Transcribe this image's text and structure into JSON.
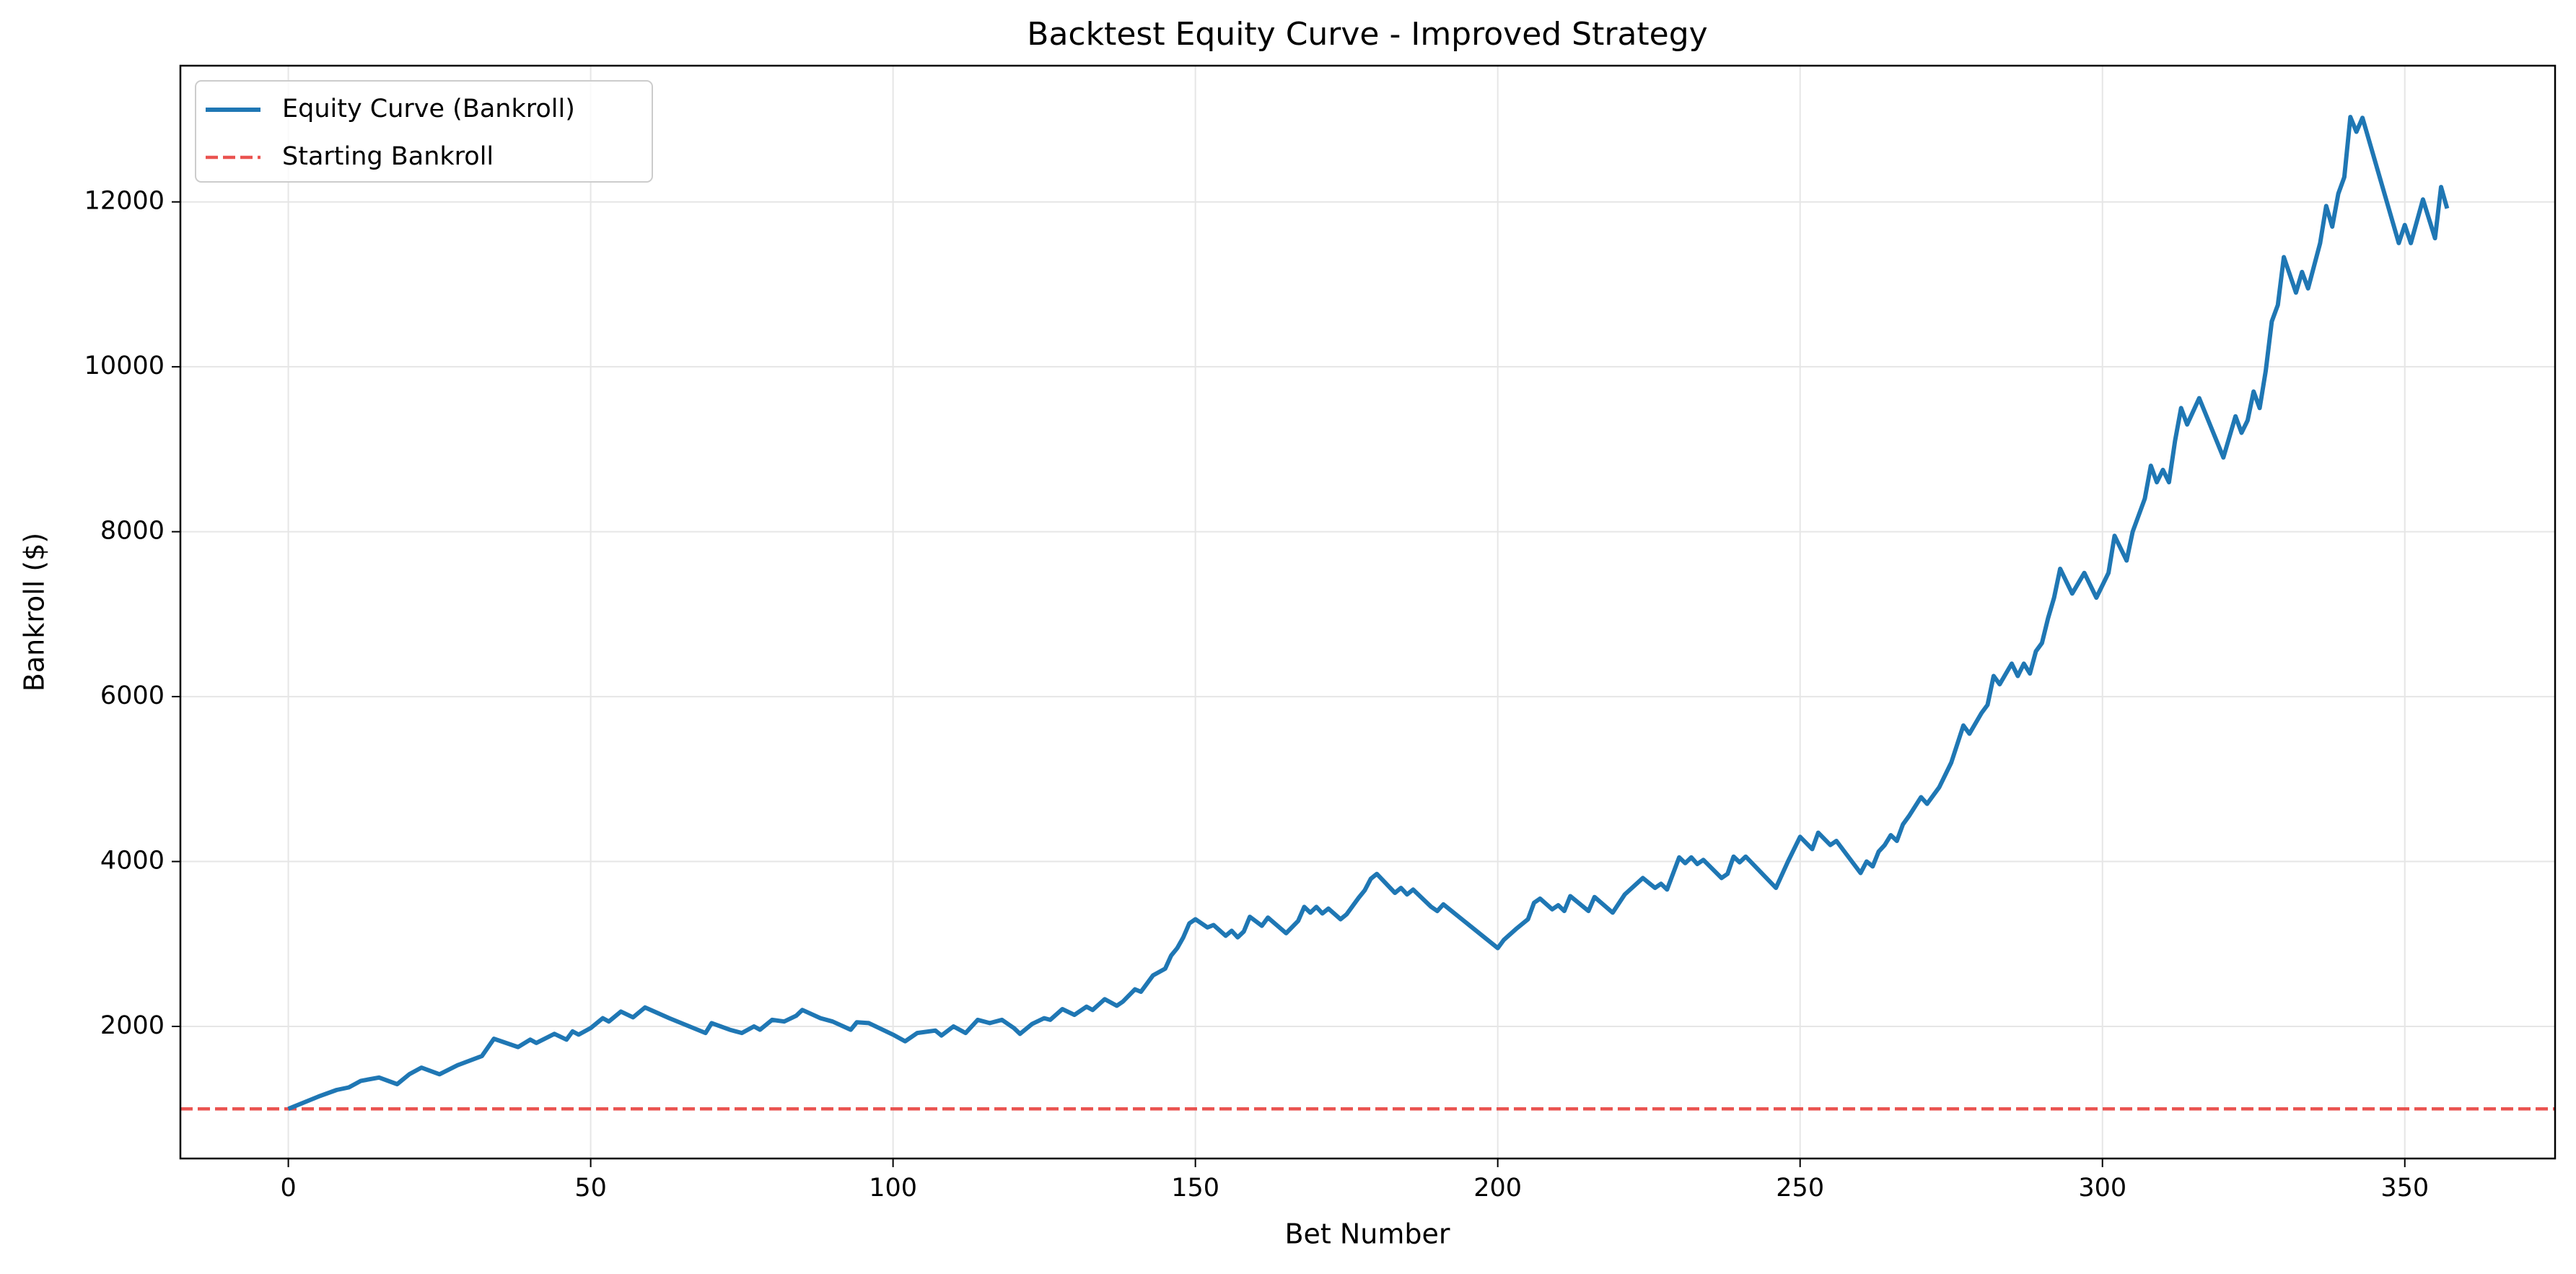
{
  "chart_data": {
    "type": "line",
    "title": "Backtest Equity Curve - Improved Strategy",
    "x_label": "Bet Number",
    "y_label": "Bankroll ($)",
    "xlim": [
      -17.85,
      374.85
    ],
    "ylim": [
      398,
      13652
    ],
    "xticks": [
      0,
      50,
      100,
      150,
      200,
      250,
      300,
      350
    ],
    "yticks": [
      2000,
      4000,
      6000,
      8000,
      10000,
      12000
    ],
    "grid": true,
    "legend": "upper left",
    "series": [
      {
        "name": "Equity Curve (Bankroll)",
        "color": "#1f77b4",
        "x": [
          0,
          5,
          8,
          10,
          12,
          15,
          18,
          20,
          22,
          25,
          28,
          32,
          34,
          38,
          40,
          41,
          44,
          46,
          47,
          48,
          50,
          52,
          53,
          55,
          57,
          59,
          63,
          69,
          70,
          73,
          75,
          77,
          78,
          80,
          82,
          84,
          85,
          88,
          90,
          93,
          94,
          96,
          100,
          102,
          104,
          107,
          108,
          110,
          112,
          114,
          116,
          118,
          120,
          121,
          123,
          125,
          126,
          128,
          130,
          132,
          133,
          135,
          137,
          138,
          140,
          141,
          143,
          145,
          146,
          147,
          148,
          149,
          150,
          152,
          153,
          155,
          156,
          157,
          158,
          159,
          161,
          162,
          165,
          167,
          168,
          169,
          170,
          171,
          172,
          174,
          175,
          177,
          178,
          179,
          180,
          183,
          184,
          185,
          186,
          189,
          190,
          191,
          200,
          201,
          203,
          205,
          206,
          207,
          209,
          210,
          211,
          212,
          215,
          216,
          219,
          221,
          224,
          226,
          227,
          228,
          230,
          231,
          232,
          233,
          234,
          237,
          238,
          239,
          240,
          241,
          246,
          248,
          250,
          252,
          253,
          255,
          256,
          260,
          261,
          262,
          263,
          264,
          265,
          266,
          267,
          268,
          270,
          271,
          273,
          275,
          277,
          278,
          280,
          281,
          282,
          283,
          285,
          286,
          287,
          288,
          289,
          290,
          291,
          292,
          293,
          295,
          297,
          299,
          301,
          302,
          304,
          305,
          307,
          308,
          309,
          310,
          311,
          312,
          313,
          314,
          316,
          320,
          322,
          323,
          324,
          325,
          326,
          327,
          328,
          329,
          330,
          332,
          333,
          334,
          336,
          337,
          338,
          339,
          340,
          341,
          342,
          343,
          349,
          350,
          351,
          353,
          355,
          356,
          357
        ],
        "values": [
          1000,
          1150,
          1230,
          1260,
          1340,
          1380,
          1300,
          1420,
          1500,
          1420,
          1530,
          1640,
          1850,
          1750,
          1840,
          1800,
          1910,
          1840,
          1940,
          1900,
          1980,
          2100,
          2060,
          2180,
          2110,
          2230,
          2100,
          1920,
          2040,
          1960,
          1920,
          2000,
          1960,
          2080,
          2060,
          2130,
          2200,
          2100,
          2060,
          1960,
          2050,
          2040,
          1900,
          1820,
          1920,
          1950,
          1890,
          2000,
          1920,
          2080,
          2040,
          2080,
          1980,
          1910,
          2030,
          2100,
          2080,
          2210,
          2140,
          2240,
          2200,
          2330,
          2250,
          2300,
          2450,
          2420,
          2620,
          2700,
          2860,
          2950,
          3080,
          3250,
          3300,
          3200,
          3230,
          3100,
          3160,
          3080,
          3150,
          3330,
          3220,
          3320,
          3130,
          3280,
          3450,
          3380,
          3450,
          3370,
          3430,
          3300,
          3360,
          3560,
          3650,
          3790,
          3850,
          3620,
          3680,
          3600,
          3660,
          3450,
          3400,
          3480,
          2950,
          3050,
          3180,
          3300,
          3500,
          3550,
          3420,
          3470,
          3400,
          3580,
          3400,
          3570,
          3380,
          3600,
          3800,
          3680,
          3730,
          3660,
          4050,
          3980,
          4050,
          3970,
          4020,
          3800,
          3850,
          4060,
          3990,
          4060,
          3680,
          4000,
          4300,
          4150,
          4350,
          4200,
          4250,
          3860,
          4000,
          3940,
          4120,
          4200,
          4320,
          4250,
          4450,
          4550,
          4780,
          4700,
          4900,
          5200,
          5650,
          5550,
          5800,
          5900,
          6250,
          6150,
          6400,
          6250,
          6400,
          6280,
          6550,
          6650,
          6950,
          7200,
          7550,
          7250,
          7500,
          7200,
          7500,
          7950,
          7650,
          8000,
          8400,
          8800,
          8600,
          8750,
          8600,
          9100,
          9500,
          9300,
          9620,
          8900,
          9400,
          9200,
          9350,
          9700,
          9500,
          9950,
          10550,
          10750,
          11330,
          10900,
          11150,
          10950,
          11500,
          11950,
          11700,
          12100,
          12300,
          13030,
          12850,
          13020,
          11500,
          11720,
          11500,
          12030,
          11560,
          12180,
          11920
        ]
      }
    ],
    "hlines": [
      {
        "name": "Starting Bankroll",
        "value": 1000,
        "color": "#e8413e",
        "style": "dashed"
      }
    ]
  }
}
